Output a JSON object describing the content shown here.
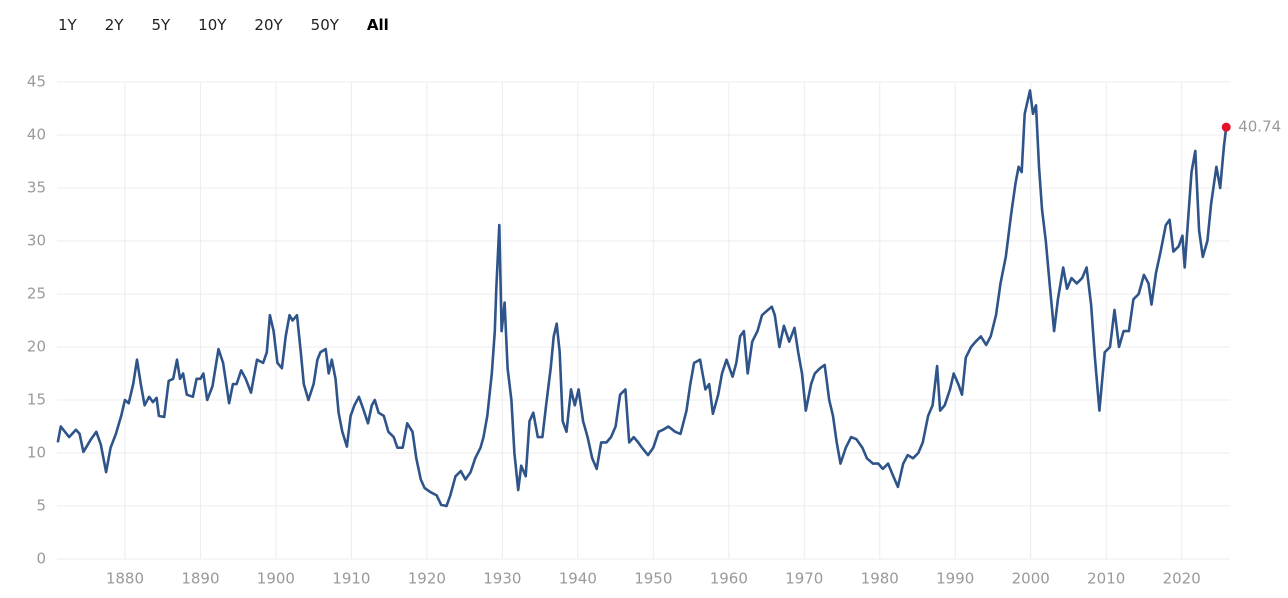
{
  "range_buttons": [
    "1Y",
    "2Y",
    "5Y",
    "10Y",
    "20Y",
    "50Y",
    "All"
  ],
  "chart_data": {
    "type": "line",
    "color": "#2e5489",
    "marker_color": "#e4122a",
    "grid": true,
    "xlim": [
      1871,
      2026.4
    ],
    "xticks": [
      1880,
      1890,
      1900,
      1910,
      1920,
      1930,
      1940,
      1950,
      1960,
      1970,
      1980,
      1990,
      2000,
      2010,
      2020
    ],
    "ylim": [
      0,
      45
    ],
    "yticks": [
      0,
      5,
      10,
      15,
      20,
      25,
      30,
      35,
      40,
      45
    ],
    "x": [
      1871.1,
      1871.5,
      1872.6,
      1873.5,
      1874.0,
      1874.5,
      1875.5,
      1876.2,
      1876.8,
      1877.5,
      1878.1,
      1878.8,
      1879.5,
      1880.0,
      1880.5,
      1881.1,
      1881.6,
      1882.1,
      1882.6,
      1883.2,
      1883.7,
      1884.2,
      1884.5,
      1885.2,
      1885.8,
      1886.4,
      1886.9,
      1887.3,
      1887.7,
      1888.2,
      1889.0,
      1889.5,
      1890.0,
      1890.4,
      1890.9,
      1891.6,
      1892.4,
      1893.0,
      1893.8,
      1894.3,
      1894.8,
      1895.4,
      1896.0,
      1896.7,
      1897.5,
      1898.3,
      1898.8,
      1899.2,
      1899.7,
      1900.2,
      1900.8,
      1901.3,
      1901.8,
      1902.2,
      1902.8,
      1903.3,
      1903.7,
      1904.3,
      1905.0,
      1905.5,
      1905.9,
      1906.6,
      1907.0,
      1907.4,
      1907.9,
      1908.3,
      1908.8,
      1909.4,
      1909.9,
      1910.4,
      1911.0,
      1911.5,
      1912.2,
      1912.7,
      1913.1,
      1913.6,
      1914.3,
      1914.9,
      1915.6,
      1916.1,
      1916.8,
      1917.4,
      1918.1,
      1918.6,
      1919.2,
      1919.7,
      1920.5,
      1921.3,
      1921.9,
      1922.6,
      1923.1,
      1923.8,
      1924.5,
      1925.1,
      1925.8,
      1926.4,
      1927.1,
      1927.5,
      1928.0,
      1928.6,
      1929.0,
      1929.2,
      1929.6,
      1929.9,
      1930.3,
      1930.7,
      1931.2,
      1931.6,
      1932.1,
      1932.5,
      1933.1,
      1933.6,
      1934.1,
      1934.7,
      1935.3,
      1935.8,
      1936.4,
      1936.8,
      1937.2,
      1937.6,
      1938.0,
      1938.5,
      1939.1,
      1939.6,
      1940.1,
      1940.7,
      1941.3,
      1941.9,
      1942.5,
      1943.1,
      1943.8,
      1944.4,
      1945.0,
      1945.6,
      1946.3,
      1946.8,
      1947.4,
      1948.0,
      1948.5,
      1949.3,
      1950.0,
      1950.7,
      1951.3,
      1952.0,
      1952.9,
      1953.6,
      1954.4,
      1954.9,
      1955.4,
      1956.2,
      1956.9,
      1957.4,
      1957.9,
      1958.6,
      1959.1,
      1959.7,
      1960.5,
      1961.0,
      1961.5,
      1962.0,
      1962.5,
      1963.1,
      1963.8,
      1964.4,
      1965.2,
      1965.7,
      1966.1,
      1966.7,
      1967.3,
      1968.0,
      1968.7,
      1969.2,
      1969.7,
      1970.2,
      1970.9,
      1971.4,
      1972.1,
      1972.7,
      1973.3,
      1973.8,
      1974.3,
      1974.8,
      1975.5,
      1976.2,
      1976.9,
      1977.7,
      1978.3,
      1979.1,
      1979.8,
      1980.4,
      1981.1,
      1981.8,
      1982.4,
      1983.1,
      1983.7,
      1984.4,
      1985.1,
      1985.7,
      1986.4,
      1987.0,
      1987.6,
      1988.0,
      1988.6,
      1989.3,
      1989.8,
      1990.4,
      1990.9,
      1991.4,
      1992.1,
      1992.7,
      1993.4,
      1994.1,
      1994.7,
      1995.4,
      1996.0,
      1996.7,
      1997.4,
      1998.0,
      1998.4,
      1998.8,
      1999.2,
      1999.9,
      2000.3,
      2000.7,
      2001.1,
      2001.5,
      2002.0,
      2002.5,
      2003.1,
      2003.6,
      2004.3,
      2004.8,
      2005.4,
      2006.1,
      2006.8,
      2007.4,
      2008.0,
      2008.5,
      2009.1,
      2009.8,
      2010.5,
      2011.1,
      2011.7,
      2012.3,
      2013.0,
      2013.6,
      2014.3,
      2015.0,
      2015.6,
      2016.0,
      2016.6,
      2017.2,
      2017.9,
      2018.4,
      2018.9,
      2019.6,
      2020.1,
      2020.4,
      2020.8,
      2021.3,
      2021.8,
      2022.3,
      2022.8,
      2023.4,
      2023.9,
      2024.6,
      2025.1,
      2025.6,
      2025.9
    ],
    "values": [
      11.0,
      12.5,
      11.5,
      12.2,
      11.8,
      10.1,
      11.3,
      12.0,
      10.8,
      8.2,
      10.5,
      11.8,
      13.5,
      15.0,
      14.7,
      16.5,
      18.8,
      16.5,
      14.5,
      15.3,
      14.8,
      15.2,
      13.5,
      13.4,
      16.8,
      17.0,
      18.8,
      17.0,
      17.5,
      15.5,
      15.3,
      17.0,
      17.0,
      17.5,
      15.0,
      16.3,
      19.8,
      18.5,
      14.7,
      16.5,
      16.5,
      17.8,
      17.0,
      15.7,
      18.8,
      18.5,
      19.5,
      23.0,
      21.5,
      18.5,
      18.0,
      21.0,
      23.0,
      22.5,
      23.0,
      19.5,
      16.5,
      15.0,
      16.5,
      18.8,
      19.5,
      19.8,
      17.5,
      18.8,
      17.0,
      13.8,
      12.0,
      10.6,
      13.5,
      14.5,
      15.3,
      14.3,
      12.8,
      14.5,
      15.0,
      13.8,
      13.5,
      12.0,
      11.5,
      10.5,
      10.5,
      12.8,
      12.0,
      9.5,
      7.5,
      6.7,
      6.3,
      6.0,
      5.1,
      5.0,
      6.0,
      7.8,
      8.3,
      7.5,
      8.2,
      9.5,
      10.5,
      11.5,
      13.5,
      17.5,
      21.5,
      25.5,
      31.5,
      21.5,
      24.2,
      18.0,
      15.0,
      10.0,
      6.5,
      8.8,
      7.8,
      13.0,
      13.8,
      11.5,
      11.5,
      14.5,
      18.0,
      21.0,
      22.2,
      19.5,
      13.0,
      12.0,
      16.0,
      14.5,
      16.0,
      13.0,
      11.5,
      9.5,
      8.5,
      11.0,
      11.0,
      11.5,
      12.5,
      15.5,
      16.0,
      11.0,
      11.5,
      11.0,
      10.5,
      9.8,
      10.5,
      12.0,
      12.2,
      12.5,
      12.0,
      11.8,
      14.0,
      16.5,
      18.5,
      18.8,
      16.0,
      16.5,
      13.7,
      15.5,
      17.5,
      18.8,
      17.2,
      18.5,
      21.0,
      21.5,
      17.5,
      20.5,
      21.5,
      23.0,
      23.5,
      23.8,
      23.0,
      20.0,
      22.0,
      20.5,
      21.8,
      19.5,
      17.5,
      14.0,
      16.5,
      17.5,
      18.0,
      18.3,
      15.0,
      13.5,
      11.0,
      9.0,
      10.5,
      11.5,
      11.3,
      10.5,
      9.5,
      9.0,
      9.0,
      8.5,
      9.0,
      7.8,
      6.8,
      9.0,
      9.8,
      9.5,
      10.0,
      11.0,
      13.5,
      14.5,
      18.2,
      14.0,
      14.5,
      16.0,
      17.5,
      16.5,
      15.5,
      19.0,
      20.0,
      20.5,
      21.0,
      20.2,
      21.0,
      23.0,
      26.0,
      28.5,
      32.5,
      35.5,
      37.0,
      36.5,
      42.0,
      44.2,
      42.0,
      42.8,
      37.0,
      33.0,
      30.0,
      26.0,
      21.5,
      24.5,
      27.5,
      25.5,
      26.5,
      26.0,
      26.5,
      27.5,
      24.0,
      19.0,
      14.0,
      19.5,
      20.0,
      23.5,
      20.0,
      21.5,
      21.5,
      24.5,
      25.0,
      26.8,
      26.0,
      24.0,
      27.0,
      29.0,
      31.5,
      32.0,
      29.0,
      29.5,
      30.5,
      27.5,
      31.5,
      36.5,
      38.5,
      31.0,
      28.5,
      30.0,
      33.5,
      37.0,
      35.0,
      39.0,
      40.74
    ]
  }
}
